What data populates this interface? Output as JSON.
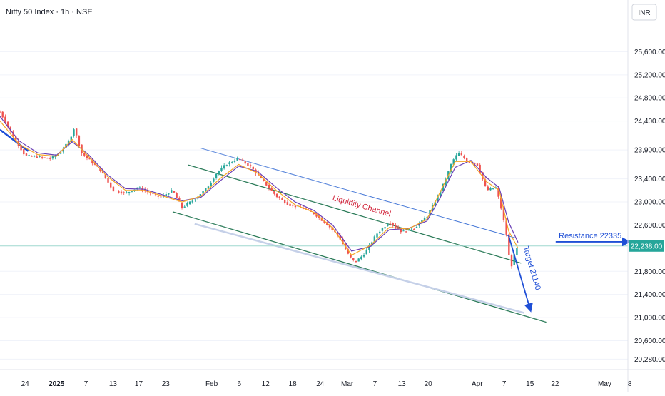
{
  "header": {
    "title": "Nifty 50 Index · 1h · NSE",
    "currency": "INR"
  },
  "colors": {
    "up": "#26a69a",
    "down": "#ef5350",
    "ema_fast": "#f5a623",
    "ema_slow": "#6a3fb5",
    "channel_upper": "#4a7bd8",
    "channel_mid": "#2e7d5b",
    "channel_lower": "#2e7d5b",
    "channel_shadow": "#c5d0e8",
    "arrow": "#1f4fd6",
    "label_red": "#d1233a",
    "price_tag": "#26a69a"
  },
  "chart_data": {
    "type": "candlestick",
    "ylim": [
      20100,
      26000
    ],
    "y_ticks": [
      {
        "value": 25600,
        "label": "25,600.00"
      },
      {
        "value": 25200,
        "label": "25,200.00"
      },
      {
        "value": 24800,
        "label": "24,800.00"
      },
      {
        "value": 24400,
        "label": "24,400.00"
      },
      {
        "value": 23900,
        "label": "23,900.00"
      },
      {
        "value": 23400,
        "label": "23,400.00"
      },
      {
        "value": 23000,
        "label": "23,000.00"
      },
      {
        "value": 22600,
        "label": "22,600.00"
      },
      {
        "value": 21800,
        "label": "21,800.00"
      },
      {
        "value": 21400,
        "label": "21,400.00"
      },
      {
        "value": 21000,
        "label": "21,000.00"
      },
      {
        "value": 20600,
        "label": "20,600.00"
      },
      {
        "value": 20280,
        "label": "20,280.00"
      }
    ],
    "x_ticks": [
      {
        "label": "24",
        "pos": 0.04
      },
      {
        "label": "2025",
        "pos": 0.09,
        "bold": true
      },
      {
        "label": "7",
        "pos": 0.137
      },
      {
        "label": "13",
        "pos": 0.18
      },
      {
        "label": "17",
        "pos": 0.221
      },
      {
        "label": "23",
        "pos": 0.264
      },
      {
        "label": "Feb",
        "pos": 0.337
      },
      {
        "label": "6",
        "pos": 0.381
      },
      {
        "label": "12",
        "pos": 0.423
      },
      {
        "label": "18",
        "pos": 0.466
      },
      {
        "label": "24",
        "pos": 0.51
      },
      {
        "label": "Mar",
        "pos": 0.553
      },
      {
        "label": "7",
        "pos": 0.597
      },
      {
        "label": "13",
        "pos": 0.64
      },
      {
        "label": "20",
        "pos": 0.682
      },
      {
        "label": "Apr",
        "pos": 0.76
      },
      {
        "label": "7",
        "pos": 0.803
      },
      {
        "label": "15",
        "pos": 0.844
      },
      {
        "label": "22",
        "pos": 0.884
      },
      {
        "label": "May",
        "pos": 0.963
      },
      {
        "label": "8",
        "pos": 1.003
      }
    ],
    "series": [
      {
        "name": "price",
        "points": [
          [
            0.0,
            24560
          ],
          [
            0.02,
            24150
          ],
          [
            0.04,
            23800
          ],
          [
            0.06,
            23780
          ],
          [
            0.08,
            23750
          ],
          [
            0.095,
            23850
          ],
          [
            0.11,
            24050
          ],
          [
            0.118,
            24280
          ],
          [
            0.13,
            23850
          ],
          [
            0.145,
            23700
          ],
          [
            0.16,
            23550
          ],
          [
            0.18,
            23200
          ],
          [
            0.2,
            23150
          ],
          [
            0.22,
            23250
          ],
          [
            0.24,
            23150
          ],
          [
            0.255,
            23080
          ],
          [
            0.275,
            23200
          ],
          [
            0.29,
            22900
          ],
          [
            0.31,
            23050
          ],
          [
            0.33,
            23250
          ],
          [
            0.345,
            23500
          ],
          [
            0.36,
            23650
          ],
          [
            0.38,
            23750
          ],
          [
            0.4,
            23600
          ],
          [
            0.42,
            23350
          ],
          [
            0.44,
            23100
          ],
          [
            0.46,
            22950
          ],
          [
            0.48,
            22900
          ],
          [
            0.5,
            22800
          ],
          [
            0.52,
            22620
          ],
          [
            0.54,
            22400
          ],
          [
            0.555,
            22080
          ],
          [
            0.565,
            21950
          ],
          [
            0.58,
            22100
          ],
          [
            0.6,
            22450
          ],
          [
            0.62,
            22650
          ],
          [
            0.64,
            22480
          ],
          [
            0.66,
            22550
          ],
          [
            0.68,
            22750
          ],
          [
            0.695,
            23050
          ],
          [
            0.71,
            23400
          ],
          [
            0.72,
            23700
          ],
          [
            0.73,
            23850
          ],
          [
            0.745,
            23700
          ],
          [
            0.76,
            23650
          ],
          [
            0.775,
            23200
          ],
          [
            0.79,
            23250
          ],
          [
            0.8,
            22800
          ],
          [
            0.808,
            22350
          ],
          [
            0.813,
            21820
          ],
          [
            0.818,
            22050
          ],
          [
            0.825,
            22238
          ]
        ]
      },
      {
        "name": "ema_fast",
        "points": [
          [
            0.0,
            24400
          ],
          [
            0.03,
            24000
          ],
          [
            0.06,
            23820
          ],
          [
            0.09,
            23790
          ],
          [
            0.115,
            24080
          ],
          [
            0.14,
            23800
          ],
          [
            0.17,
            23450
          ],
          [
            0.2,
            23200
          ],
          [
            0.23,
            23200
          ],
          [
            0.26,
            23100
          ],
          [
            0.29,
            23000
          ],
          [
            0.32,
            23100
          ],
          [
            0.35,
            23400
          ],
          [
            0.38,
            23650
          ],
          [
            0.41,
            23500
          ],
          [
            0.44,
            23200
          ],
          [
            0.47,
            22950
          ],
          [
            0.5,
            22820
          ],
          [
            0.53,
            22550
          ],
          [
            0.56,
            22080
          ],
          [
            0.59,
            22250
          ],
          [
            0.62,
            22560
          ],
          [
            0.65,
            22530
          ],
          [
            0.68,
            22700
          ],
          [
            0.7,
            23150
          ],
          [
            0.725,
            23700
          ],
          [
            0.75,
            23700
          ],
          [
            0.775,
            23350
          ],
          [
            0.795,
            23200
          ],
          [
            0.81,
            22500
          ],
          [
            0.825,
            22200
          ]
        ]
      },
      {
        "name": "ema_slow",
        "points": [
          [
            0.0,
            24480
          ],
          [
            0.03,
            24060
          ],
          [
            0.06,
            23850
          ],
          [
            0.09,
            23810
          ],
          [
            0.115,
            24040
          ],
          [
            0.14,
            23830
          ],
          [
            0.17,
            23480
          ],
          [
            0.2,
            23230
          ],
          [
            0.23,
            23220
          ],
          [
            0.26,
            23120
          ],
          [
            0.29,
            23020
          ],
          [
            0.32,
            23080
          ],
          [
            0.35,
            23360
          ],
          [
            0.38,
            23620
          ],
          [
            0.41,
            23530
          ],
          [
            0.44,
            23250
          ],
          [
            0.47,
            23000
          ],
          [
            0.5,
            22850
          ],
          [
            0.53,
            22600
          ],
          [
            0.56,
            22150
          ],
          [
            0.59,
            22230
          ],
          [
            0.62,
            22520
          ],
          [
            0.65,
            22540
          ],
          [
            0.68,
            22670
          ],
          [
            0.7,
            23050
          ],
          [
            0.725,
            23600
          ],
          [
            0.75,
            23720
          ],
          [
            0.775,
            23420
          ],
          [
            0.795,
            23250
          ],
          [
            0.81,
            22650
          ],
          [
            0.825,
            22300
          ]
        ]
      }
    ],
    "trendlines": [
      {
        "name": "channel-upper",
        "from": [
          0.32,
          23930
        ],
        "to": [
          0.82,
          22380
        ]
      },
      {
        "name": "channel-mid",
        "from": [
          0.3,
          23640
        ],
        "to": [
          0.83,
          21940
        ]
      },
      {
        "name": "channel-lower",
        "from": [
          0.275,
          22830
        ],
        "to": [
          0.87,
          20920
        ]
      },
      {
        "name": "channel-shadow",
        "from": [
          0.31,
          22620
        ],
        "to": [
          0.835,
          21080
        ]
      },
      {
        "name": "early-downtrend",
        "from": [
          0.0,
          24250
        ],
        "to": [
          0.045,
          23880
        ]
      }
    ],
    "last_price": {
      "value": 22238,
      "label": "22,238.00"
    },
    "annotations": {
      "channel_label": "Liquidity Channel",
      "target_label": "Target 21140",
      "resistance_label": "Resistance 22335"
    }
  }
}
